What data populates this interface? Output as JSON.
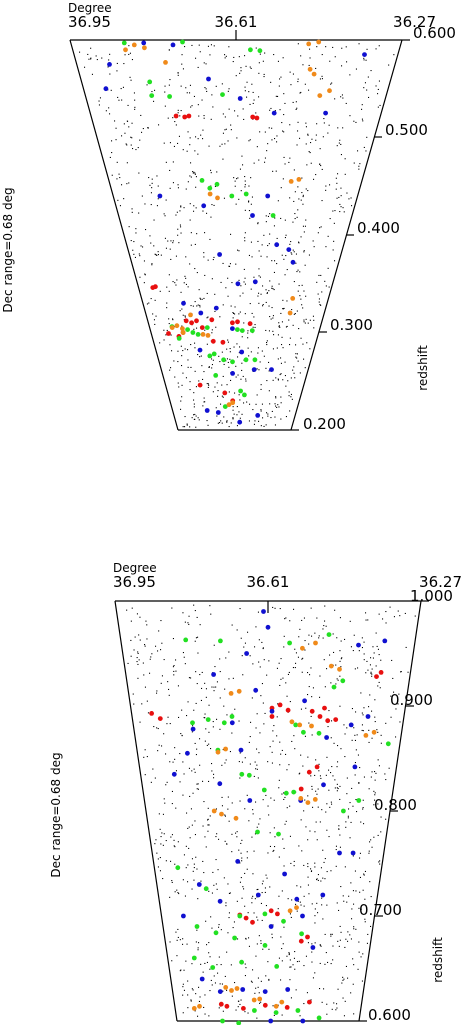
{
  "figure": {
    "colors": {
      "background_galaxies": "#000000",
      "red": "#e81010",
      "green": "#22e022",
      "blue": "#1010d0",
      "orange": "#f08a1a"
    }
  },
  "chart_data": [
    {
      "type": "scatter",
      "title": "",
      "ra_label": "Degree",
      "dec_label": "Dec range=0.68 deg",
      "z_label": "redshift",
      "ra_ticks": [
        "36.95",
        "36.61",
        "36.27"
      ],
      "z_ticks": [
        "0.600",
        "0.500",
        "0.400",
        "0.300",
        "0.200"
      ],
      "z_tick_values": [
        0.6,
        0.5,
        0.4,
        0.3,
        0.2
      ],
      "xlim": [
        36.95,
        36.27
      ],
      "ylim": [
        0.2,
        0.6
      ],
      "series": [
        {
          "color": "red",
          "points": [
            [
              36.75,
              0.522
            ],
            [
              36.73,
              0.521
            ],
            [
              36.72,
              0.522
            ],
            [
              36.57,
              0.521
            ],
            [
              36.56,
              0.52
            ],
            [
              36.9,
              0.346
            ],
            [
              36.89,
              0.347
            ],
            [
              36.8,
              0.312
            ],
            [
              36.78,
              0.31
            ],
            [
              36.76,
              0.312
            ],
            [
              36.74,
              0.305
            ],
            [
              36.7,
              0.313
            ],
            [
              36.62,
              0.31
            ],
            [
              36.6,
              0.311
            ],
            [
              36.55,
              0.309
            ],
            [
              36.88,
              0.299
            ],
            [
              36.84,
              0.296
            ],
            [
              36.82,
              0.3
            ],
            [
              36.7,
              0.291
            ],
            [
              36.66,
              0.29
            ],
            [
              36.78,
              0.246
            ],
            [
              36.66,
              0.238
            ],
            [
              36.62,
              0.23
            ]
          ]
        },
        {
          "color": "green",
          "points": [
            [
              36.84,
              0.597
            ],
            [
              36.72,
              0.598
            ],
            [
              36.58,
              0.59
            ],
            [
              36.56,
              0.589
            ],
            [
              36.8,
              0.557
            ],
            [
              36.8,
              0.543
            ],
            [
              36.76,
              0.542
            ],
            [
              36.64,
              0.544
            ],
            [
              36.7,
              0.456
            ],
            [
              36.68,
              0.448
            ],
            [
              36.66,
              0.452
            ],
            [
              36.62,
              0.44
            ],
            [
              36.58,
              0.442
            ],
            [
              36.5,
              0.42
            ],
            [
              36.8,
              0.303
            ],
            [
              36.78,
              0.3
            ],
            [
              36.76,
              0.298
            ],
            [
              36.72,
              0.305
            ],
            [
              36.6,
              0.303
            ],
            [
              36.58,
              0.302
            ],
            [
              36.54,
              0.302
            ],
            [
              36.86,
              0.306
            ],
            [
              36.84,
              0.294
            ],
            [
              36.72,
              0.276
            ],
            [
              36.7,
              0.278
            ],
            [
              36.66,
              0.272
            ],
            [
              36.62,
              0.27
            ],
            [
              36.56,
              0.272
            ],
            [
              36.52,
              0.272
            ],
            [
              36.7,
              0.256
            ],
            [
              36.58,
              0.24
            ],
            [
              36.56,
              0.236
            ],
            [
              36.66,
              0.224
            ]
          ]
        },
        {
          "color": "blue",
          "points": [
            [
              36.9,
              0.55
            ],
            [
              36.88,
              0.575
            ],
            [
              36.8,
              0.597
            ],
            [
              36.74,
              0.595
            ],
            [
              36.67,
              0.56
            ],
            [
              36.6,
              0.54
            ],
            [
              36.52,
              0.525
            ],
            [
              36.4,
              0.525
            ],
            [
              36.34,
              0.585
            ],
            [
              36.82,
              0.44
            ],
            [
              36.52,
              0.44
            ],
            [
              36.56,
              0.42
            ],
            [
              36.44,
              0.385
            ],
            [
              36.42,
              0.372
            ],
            [
              36.7,
              0.43
            ],
            [
              36.66,
              0.38
            ],
            [
              36.6,
              0.35
            ],
            [
              36.54,
              0.352
            ],
            [
              36.48,
              0.39
            ],
            [
              36.8,
              0.33
            ],
            [
              36.74,
              0.32
            ],
            [
              36.68,
              0.325
            ],
            [
              36.62,
              0.304
            ],
            [
              36.58,
              0.28
            ],
            [
              36.76,
              0.282
            ],
            [
              36.62,
              0.258
            ],
            [
              36.52,
              0.262
            ],
            [
              36.44,
              0.262
            ],
            [
              36.76,
              0.22
            ],
            [
              36.7,
              0.218
            ],
            [
              36.58,
              0.208
            ],
            [
              36.48,
              0.215
            ]
          ]
        },
        {
          "color": "orange",
          "points": [
            [
              36.82,
              0.595
            ],
            [
              36.8,
              0.592
            ],
            [
              36.84,
              0.59
            ],
            [
              36.76,
              0.577
            ],
            [
              36.46,
              0.596
            ],
            [
              36.44,
              0.598
            ],
            [
              36.45,
              0.57
            ],
            [
              36.44,
              0.565
            ],
            [
              36.42,
              0.543
            ],
            [
              36.4,
              0.548
            ],
            [
              36.46,
              0.455
            ],
            [
              36.44,
              0.457
            ],
            [
              36.68,
              0.442
            ],
            [
              36.66,
              0.438
            ],
            [
              36.86,
              0.305
            ],
            [
              36.84,
              0.307
            ],
            [
              36.82,
              0.304
            ],
            [
              36.78,
              0.318
            ],
            [
              36.74,
              0.298
            ],
            [
              36.72,
              0.297
            ],
            [
              36.82,
              0.3
            ],
            [
              36.4,
              0.335
            ],
            [
              36.4,
              0.32
            ],
            [
              36.64,
              0.226
            ],
            [
              36.62,
              0.228
            ]
          ]
        }
      ]
    },
    {
      "type": "scatter",
      "title": "",
      "ra_label": "Degree",
      "dec_label": "Dec range=0.68 deg",
      "z_label": "redshift",
      "ra_ticks": [
        "36.95",
        "36.61",
        "36.27"
      ],
      "z_ticks": [
        "1.000",
        "0.900",
        "0.800",
        "0.700",
        "0.600"
      ],
      "z_tick_values": [
        1.0,
        0.9,
        0.8,
        0.7,
        0.6
      ],
      "xlim": [
        36.95,
        36.27
      ],
      "ylim": [
        0.6,
        1.0
      ],
      "series": [
        {
          "color": "red",
          "points": [
            [
              36.35,
              0.928
            ],
            [
              36.34,
              0.932
            ],
            [
              36.5,
              0.895
            ],
            [
              36.48,
              0.89
            ],
            [
              36.46,
              0.886
            ],
            [
              36.44,
              0.887
            ],
            [
              36.47,
              0.898
            ],
            [
              36.6,
              0.898
            ],
            [
              36.58,
              0.901
            ],
            [
              36.56,
              0.896
            ],
            [
              36.6,
              0.89
            ],
            [
              36.9,
              0.893
            ],
            [
              36.88,
              0.888
            ],
            [
              36.48,
              0.842
            ],
            [
              36.5,
              0.837
            ],
            [
              36.52,
              0.821
            ],
            [
              36.6,
              0.705
            ],
            [
              36.58,
              0.702
            ],
            [
              36.7,
              0.701
            ],
            [
              36.68,
              0.698
            ],
            [
              36.66,
              0.694
            ],
            [
              36.48,
              0.68
            ],
            [
              36.5,
              0.676
            ],
            [
              36.78,
              0.616
            ],
            [
              36.76,
              0.614
            ],
            [
              36.7,
              0.612
            ],
            [
              36.62,
              0.615
            ],
            [
              36.54,
              0.613
            ],
            [
              36.46,
              0.618
            ]
          ]
        },
        {
          "color": "green",
          "points": [
            [
              36.8,
              0.963
            ],
            [
              36.72,
              0.962
            ],
            [
              36.56,
              0.96
            ],
            [
              36.47,
              0.968
            ],
            [
              36.45,
              0.918
            ],
            [
              36.43,
              0.924
            ],
            [
              36.8,
              0.884
            ],
            [
              36.76,
              0.887
            ],
            [
              36.72,
              0.884
            ],
            [
              36.7,
              0.89
            ],
            [
              36.54,
              0.882
            ],
            [
              36.52,
              0.875
            ],
            [
              36.48,
              0.874
            ],
            [
              36.3,
              0.864
            ],
            [
              36.74,
              0.858
            ],
            [
              36.68,
              0.835
            ],
            [
              36.66,
              0.834
            ],
            [
              36.62,
              0.82
            ],
            [
              36.56,
              0.817
            ],
            [
              36.54,
              0.818
            ],
            [
              36.64,
              0.78
            ],
            [
              36.58,
              0.778
            ],
            [
              36.4,
              0.8
            ],
            [
              36.36,
              0.81
            ],
            [
              36.88,
              0.746
            ],
            [
              36.8,
              0.726
            ],
            [
              36.7,
              0.7
            ],
            [
              36.62,
              0.702
            ],
            [
              36.56,
              0.695
            ],
            [
              36.84,
              0.69
            ],
            [
              36.78,
              0.684
            ],
            [
              36.72,
              0.679
            ],
            [
              36.62,
              0.672
            ],
            [
              36.5,
              0.683
            ],
            [
              36.86,
              0.66
            ],
            [
              36.8,
              0.651
            ],
            [
              36.7,
              0.656
            ],
            [
              36.58,
              0.652
            ],
            [
              36.66,
              0.61
            ],
            [
              36.58,
              0.608
            ],
            [
              36.5,
              0.61
            ],
            [
              36.42,
              0.603
            ],
            [
              36.78,
              0.6
            ],
            [
              36.72,
              0.598
            ]
          ]
        },
        {
          "color": "blue",
          "points": [
            [
              36.61,
              0.975
            ],
            [
              36.62,
              0.99
            ],
            [
              36.34,
              0.962
            ],
            [
              36.4,
              0.958
            ],
            [
              36.66,
              0.95
            ],
            [
              36.74,
              0.93
            ],
            [
              36.64,
              0.915
            ],
            [
              36.6,
              0.895
            ],
            [
              36.52,
              0.905
            ],
            [
              36.7,
              0.884
            ],
            [
              36.8,
              0.878
            ],
            [
              36.4,
              0.882
            ],
            [
              36.36,
              0.89
            ],
            [
              36.46,
              0.87
            ],
            [
              36.82,
              0.855
            ],
            [
              36.68,
              0.858
            ],
            [
              36.38,
              0.842
            ],
            [
              36.86,
              0.835
            ],
            [
              36.74,
              0.826
            ],
            [
              36.66,
              0.81
            ],
            [
              36.52,
              0.81
            ],
            [
              36.46,
              0.825
            ],
            [
              36.4,
              0.76
            ],
            [
              36.36,
              0.76
            ],
            [
              36.7,
              0.752
            ],
            [
              36.56,
              0.74
            ],
            [
              36.82,
              0.73
            ],
            [
              36.76,
              0.714
            ],
            [
              36.64,
              0.72
            ],
            [
              36.52,
              0.716
            ],
            [
              36.44,
              0.72
            ],
            [
              36.88,
              0.7
            ],
            [
              36.6,
              0.69
            ],
            [
              36.5,
              0.7
            ],
            [
              36.46,
              0.67
            ],
            [
              36.84,
              0.64
            ],
            [
              36.78,
              0.628
            ],
            [
              36.7,
              0.63
            ],
            [
              36.62,
              0.628
            ],
            [
              36.54,
              0.63
            ],
            [
              36.48,
              0.6
            ],
            [
              36.6,
              0.6
            ]
          ]
        },
        {
          "color": "orange",
          "points": [
            [
              36.53,
              0.955
            ],
            [
              36.5,
              0.96
            ],
            [
              36.46,
              0.938
            ],
            [
              36.44,
              0.935
            ],
            [
              36.7,
              0.912
            ],
            [
              36.68,
              0.914
            ],
            [
              36.55,
              0.885
            ],
            [
              36.53,
              0.882
            ],
            [
              36.5,
              0.881
            ],
            [
              36.36,
              0.872
            ],
            [
              36.34,
              0.875
            ],
            [
              36.74,
              0.856
            ],
            [
              36.72,
              0.859
            ],
            [
              36.76,
              0.8
            ],
            [
              36.74,
              0.797
            ],
            [
              36.7,
              0.793
            ],
            [
              36.52,
              0.812
            ],
            [
              36.5,
              0.808
            ],
            [
              36.48,
              0.811
            ],
            [
              36.54,
              0.705
            ],
            [
              36.52,
              0.708
            ],
            [
              36.76,
              0.632
            ],
            [
              36.74,
              0.629
            ],
            [
              36.72,
              0.631
            ],
            [
              36.66,
              0.62
            ],
            [
              36.64,
              0.621
            ],
            [
              36.58,
              0.614
            ],
            [
              36.56,
              0.618
            ],
            [
              36.86,
              0.614
            ],
            [
              36.88,
              0.612
            ]
          ]
        }
      ]
    }
  ]
}
